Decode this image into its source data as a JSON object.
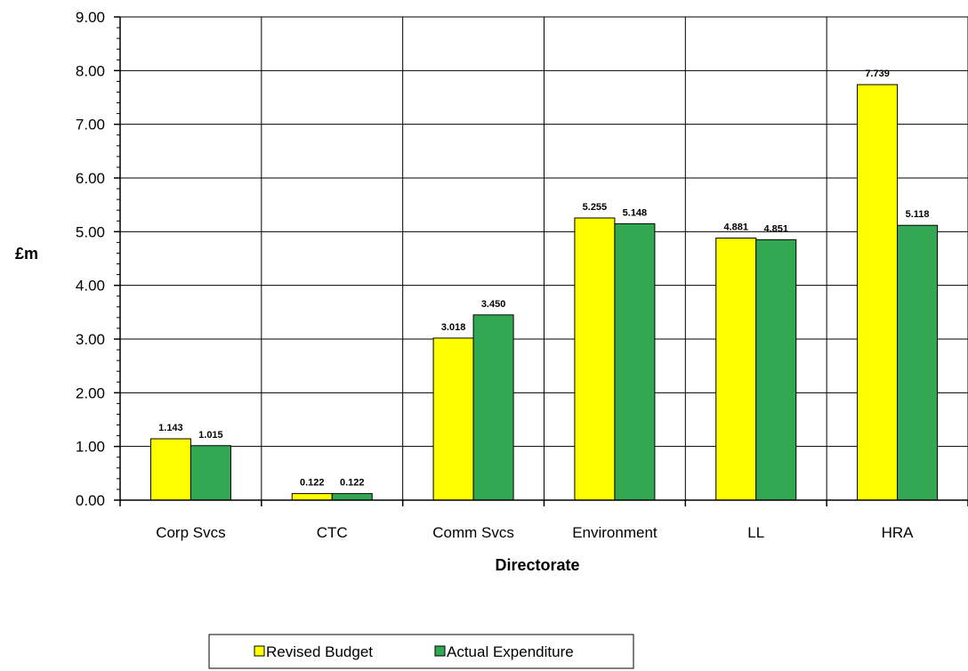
{
  "chart_data": {
    "type": "bar",
    "categories": [
      "Corp Svcs",
      "CTC",
      "Comm Svcs",
      "Environment",
      "LL",
      "HRA"
    ],
    "series": [
      {
        "name": "Revised Budget",
        "color": "#ffff00",
        "values": [
          1.143,
          0.122,
          3.018,
          5.255,
          4.881,
          7.739
        ],
        "labels": [
          "1.143",
          "0.122",
          "3.018",
          "5.255",
          "4.881",
          "7.739"
        ]
      },
      {
        "name": "Actual Expenditure",
        "color": "#33a852",
        "values": [
          1.015,
          0.122,
          3.45,
          5.148,
          4.851,
          5.118
        ],
        "labels": [
          "1.015",
          "0.122",
          "3.450",
          "5.148",
          "4.851",
          "5.118"
        ]
      }
    ],
    "xlabel": "Directorate",
    "ylabel": "£m",
    "ylim": [
      0,
      9
    ],
    "y_ticks": [
      "0.00",
      "1.00",
      "2.00",
      "3.00",
      "4.00",
      "5.00",
      "6.00",
      "7.00",
      "8.00",
      "9.00"
    ],
    "grid": true,
    "legend_position": "bottom"
  }
}
